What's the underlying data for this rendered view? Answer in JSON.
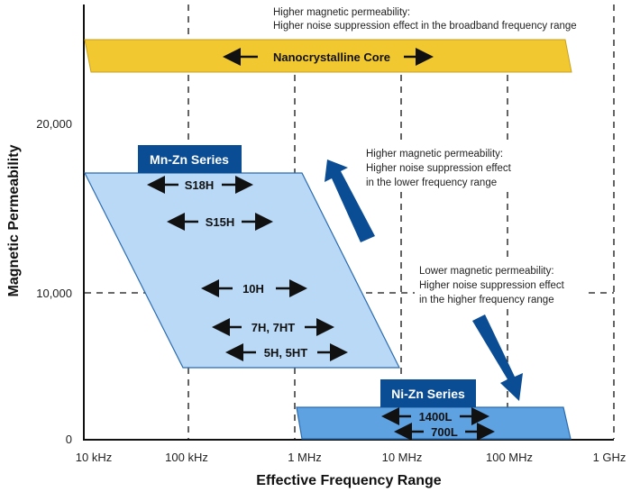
{
  "axes": {
    "x_title": "Effective Frequency Range",
    "y_title": "Magnetic Permeability",
    "x_ticks": [
      "10 kHz",
      "100 kHz",
      "1 MHz",
      "10 MHz",
      "100 MHz",
      "1 GHz"
    ],
    "y_ticks": [
      "0",
      "10,000",
      "20,000"
    ],
    "x_scale": "log"
  },
  "nanocrystalline": {
    "label": "Nanocrystalline Core",
    "note_line1": "Higher magnetic permeability:",
    "note_line2": "Higher noise suppression effect in the broadband frequency range",
    "color": "#f2c830"
  },
  "mnzn": {
    "series_label": "Mn-Zn Series",
    "grades": [
      "S18H",
      "S15H",
      "10H",
      "7H, 7HT",
      "5H, 5HT"
    ],
    "note_line1": "Higher magnetic permeability:",
    "note_line2": "Higher noise suppression effect",
    "note_line3": "in the lower frequency range",
    "color": "#b9d9f6"
  },
  "nizn": {
    "series_label": "Ni-Zn Series",
    "grades": [
      "1400L",
      "700L"
    ],
    "note_line1": "Lower magnetic permeability:",
    "note_line2": "Higher noise suppression effect",
    "note_line3": "in the higher frequency range",
    "color": "#5fa2e2"
  },
  "accent_color": "#0a4d94"
}
